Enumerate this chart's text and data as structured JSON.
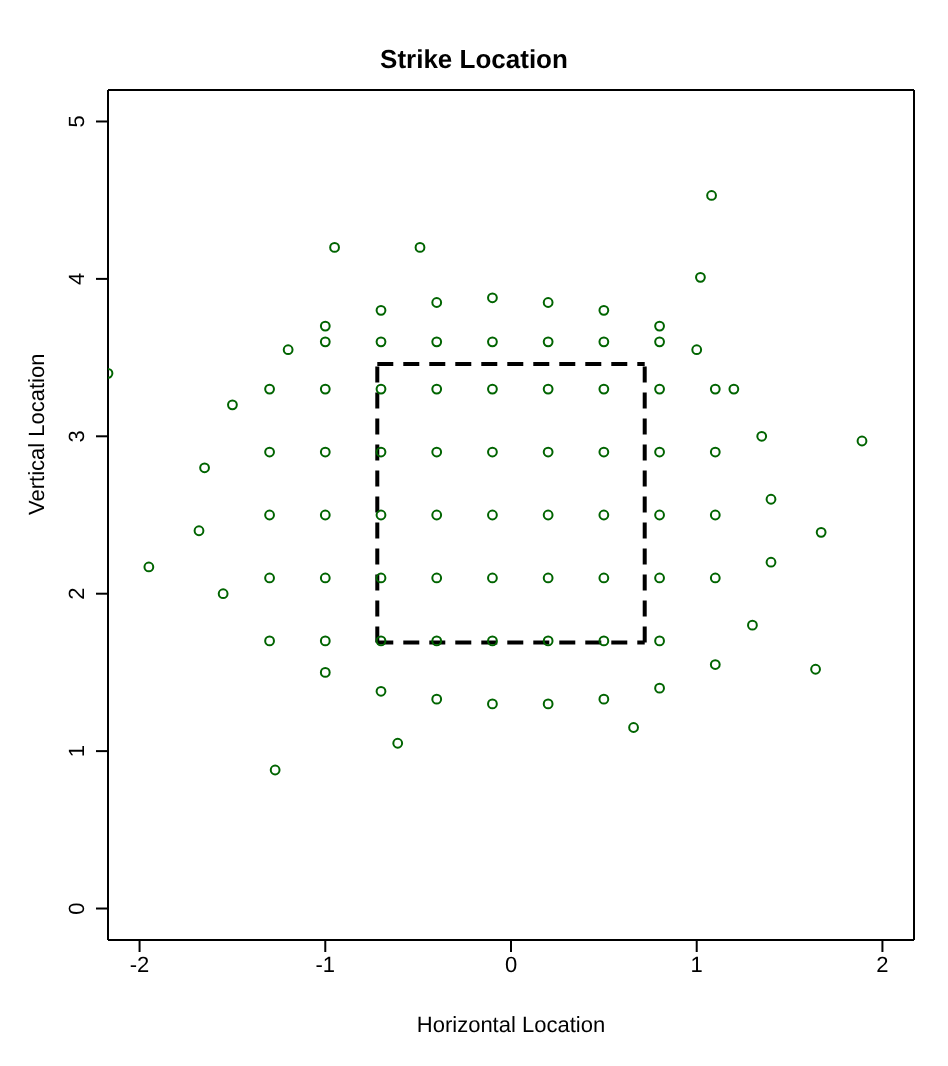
{
  "chart_data": {
    "type": "scatter",
    "title": "Strike Location",
    "xlabel": "Horizontal Location",
    "ylabel": "Vertical Location",
    "xlim": [
      -2.17,
      2.17
    ],
    "ylim": [
      -0.2,
      5.2
    ],
    "xticks": [
      -2,
      -1,
      0,
      1,
      2
    ],
    "yticks": [
      0,
      1,
      2,
      3,
      4,
      5
    ],
    "legend": false,
    "series": [
      {
        "color": "#006400",
        "marker": "circle",
        "x": [
          1.08,
          -0.95,
          -0.49,
          1.02,
          -2.17,
          1.89,
          -1.95,
          1.64,
          -1.27,
          -0.61,
          0.66,
          1.67,
          -1.2,
          -1.0,
          -0.7,
          -0.4,
          -0.1,
          0.2,
          0.5,
          0.8,
          1.0,
          1.2,
          1.35,
          1.4,
          1.4,
          1.3,
          1.1,
          0.8,
          0.5,
          0.2,
          -0.1,
          -0.4,
          -0.7,
          -1.0,
          -1.3,
          -1.55,
          -1.68,
          -1.65,
          -1.5,
          -1.3,
          -1.0,
          -0.7,
          -0.4,
          -0.1,
          0.2,
          0.5,
          0.8,
          1.1,
          -1.3,
          -1.0,
          -0.7,
          -0.4,
          -0.1,
          0.2,
          0.5,
          0.8,
          1.1,
          -1.3,
          -1.0,
          -0.7,
          -0.4,
          -0.1,
          0.2,
          0.5,
          0.8,
          1.1,
          -1.3,
          -1.0,
          -0.7,
          -0.4,
          -0.1,
          0.2,
          0.5,
          0.8,
          1.1,
          -1.0,
          -0.7,
          -0.4,
          -0.1,
          0.2,
          0.5,
          0.8,
          -1.0,
          -0.7,
          -0.4,
          -0.1,
          0.2,
          0.5,
          0.8
        ],
        "values": [
          4.53,
          4.2,
          4.2,
          4.01,
          3.4,
          2.97,
          2.17,
          1.52,
          0.88,
          1.05,
          1.15,
          2.39,
          3.55,
          3.7,
          3.8,
          3.85,
          3.88,
          3.85,
          3.8,
          3.7,
          3.55,
          3.3,
          3.0,
          2.6,
          2.2,
          1.8,
          1.55,
          1.4,
          1.33,
          1.3,
          1.3,
          1.33,
          1.38,
          1.5,
          1.7,
          2.0,
          2.4,
          2.8,
          3.2,
          2.1,
          2.1,
          2.1,
          2.1,
          2.1,
          2.1,
          2.1,
          2.1,
          2.1,
          2.5,
          2.5,
          2.5,
          2.5,
          2.5,
          2.5,
          2.5,
          2.5,
          2.5,
          2.9,
          2.9,
          2.9,
          2.9,
          2.9,
          2.9,
          2.9,
          2.9,
          2.9,
          3.3,
          3.3,
          3.3,
          3.3,
          3.3,
          3.3,
          3.3,
          3.3,
          3.3,
          1.7,
          1.7,
          1.7,
          1.7,
          1.7,
          1.7,
          1.7,
          3.6,
          3.6,
          3.6,
          3.6,
          3.6,
          3.6,
          3.6
        ]
      },
      {
        "type": "line",
        "color": "#000000",
        "marker": "none",
        "line_style": "dashed",
        "x": [
          -0.72,
          0.72
        ],
        "values": [
          3.46,
          3.46
        ]
      },
      {
        "type": "line",
        "color": "#000000",
        "marker": "none",
        "line_style": "dashed",
        "x": [
          -0.72,
          0.72
        ],
        "values": [
          1.69,
          1.69
        ]
      },
      {
        "type": "line",
        "color": "#000000",
        "marker": "none",
        "line_style": "dashed",
        "x": [
          -0.72,
          -0.72
        ],
        "values": [
          1.69,
          3.46
        ]
      },
      {
        "type": "line",
        "color": "#000000",
        "marker": "none",
        "line_style": "dashed",
        "x": [
          0.72,
          0.72
        ],
        "values": [
          1.69,
          3.46
        ]
      }
    ]
  }
}
